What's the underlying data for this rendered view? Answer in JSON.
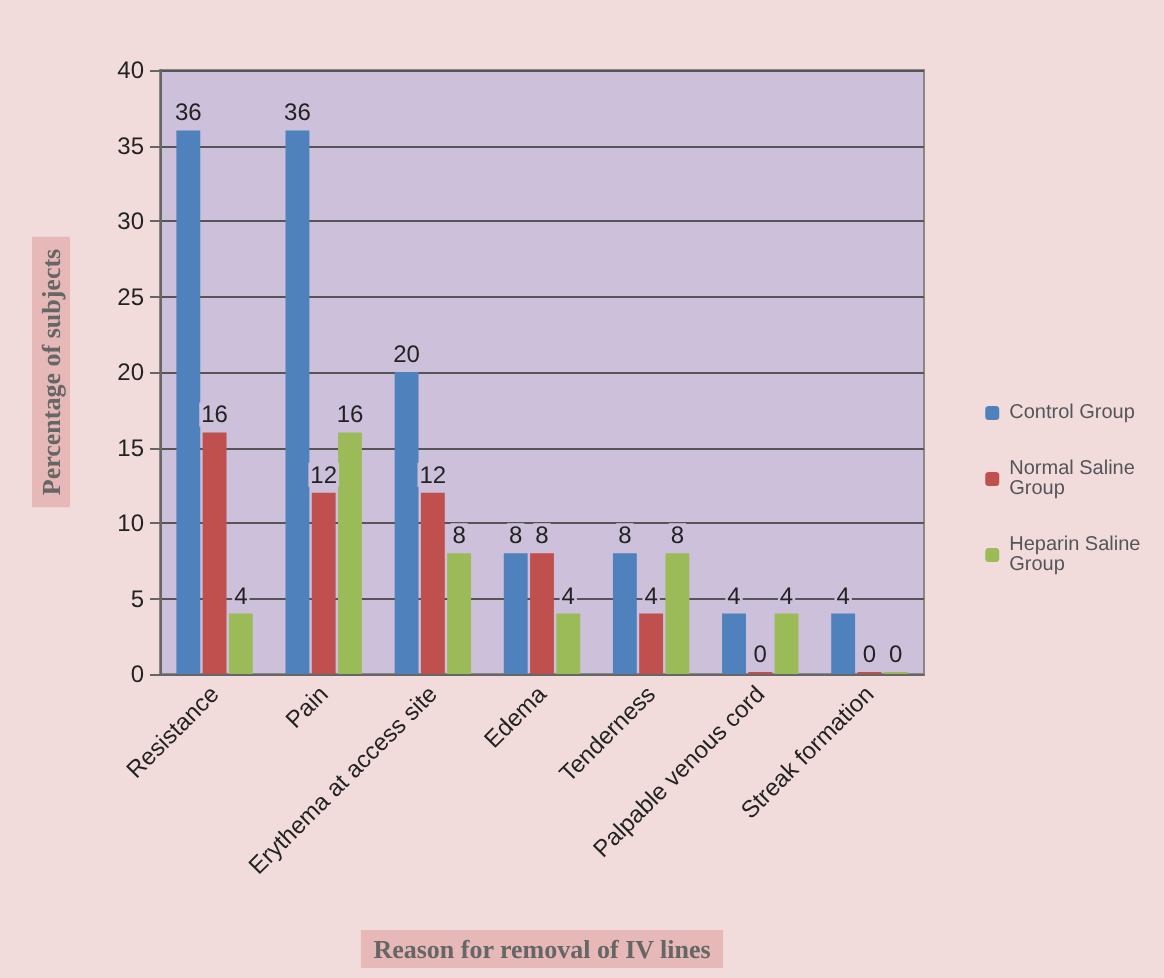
{
  "chart_data": {
    "type": "bar",
    "xlabel": "Reason for removal of IV lines",
    "ylabel": "Percentage of subjects",
    "categories": [
      "Resistance",
      "Pain",
      "Erythema at access site",
      "Edema",
      "Tenderness",
      "Palpable venous cord",
      "Streak formation"
    ],
    "series": [
      {
        "name": "Control Group",
        "color": "#4f81bd",
        "values": [
          36,
          36,
          20,
          8,
          8,
          4,
          4
        ]
      },
      {
        "name": "Normal Saline Group",
        "color": "#c0504d",
        "values": [
          16,
          12,
          12,
          8,
          4,
          0,
          0
        ]
      },
      {
        "name": "Heparin Saline Group",
        "color": "#9bbb59",
        "values": [
          4,
          16,
          8,
          4,
          8,
          4,
          0
        ]
      }
    ],
    "ylim": [
      0,
      40
    ],
    "yticks": [
      0,
      5,
      10,
      15,
      20,
      25,
      30,
      35,
      40
    ],
    "grid": "y",
    "legend": "right",
    "data_labels": true
  }
}
